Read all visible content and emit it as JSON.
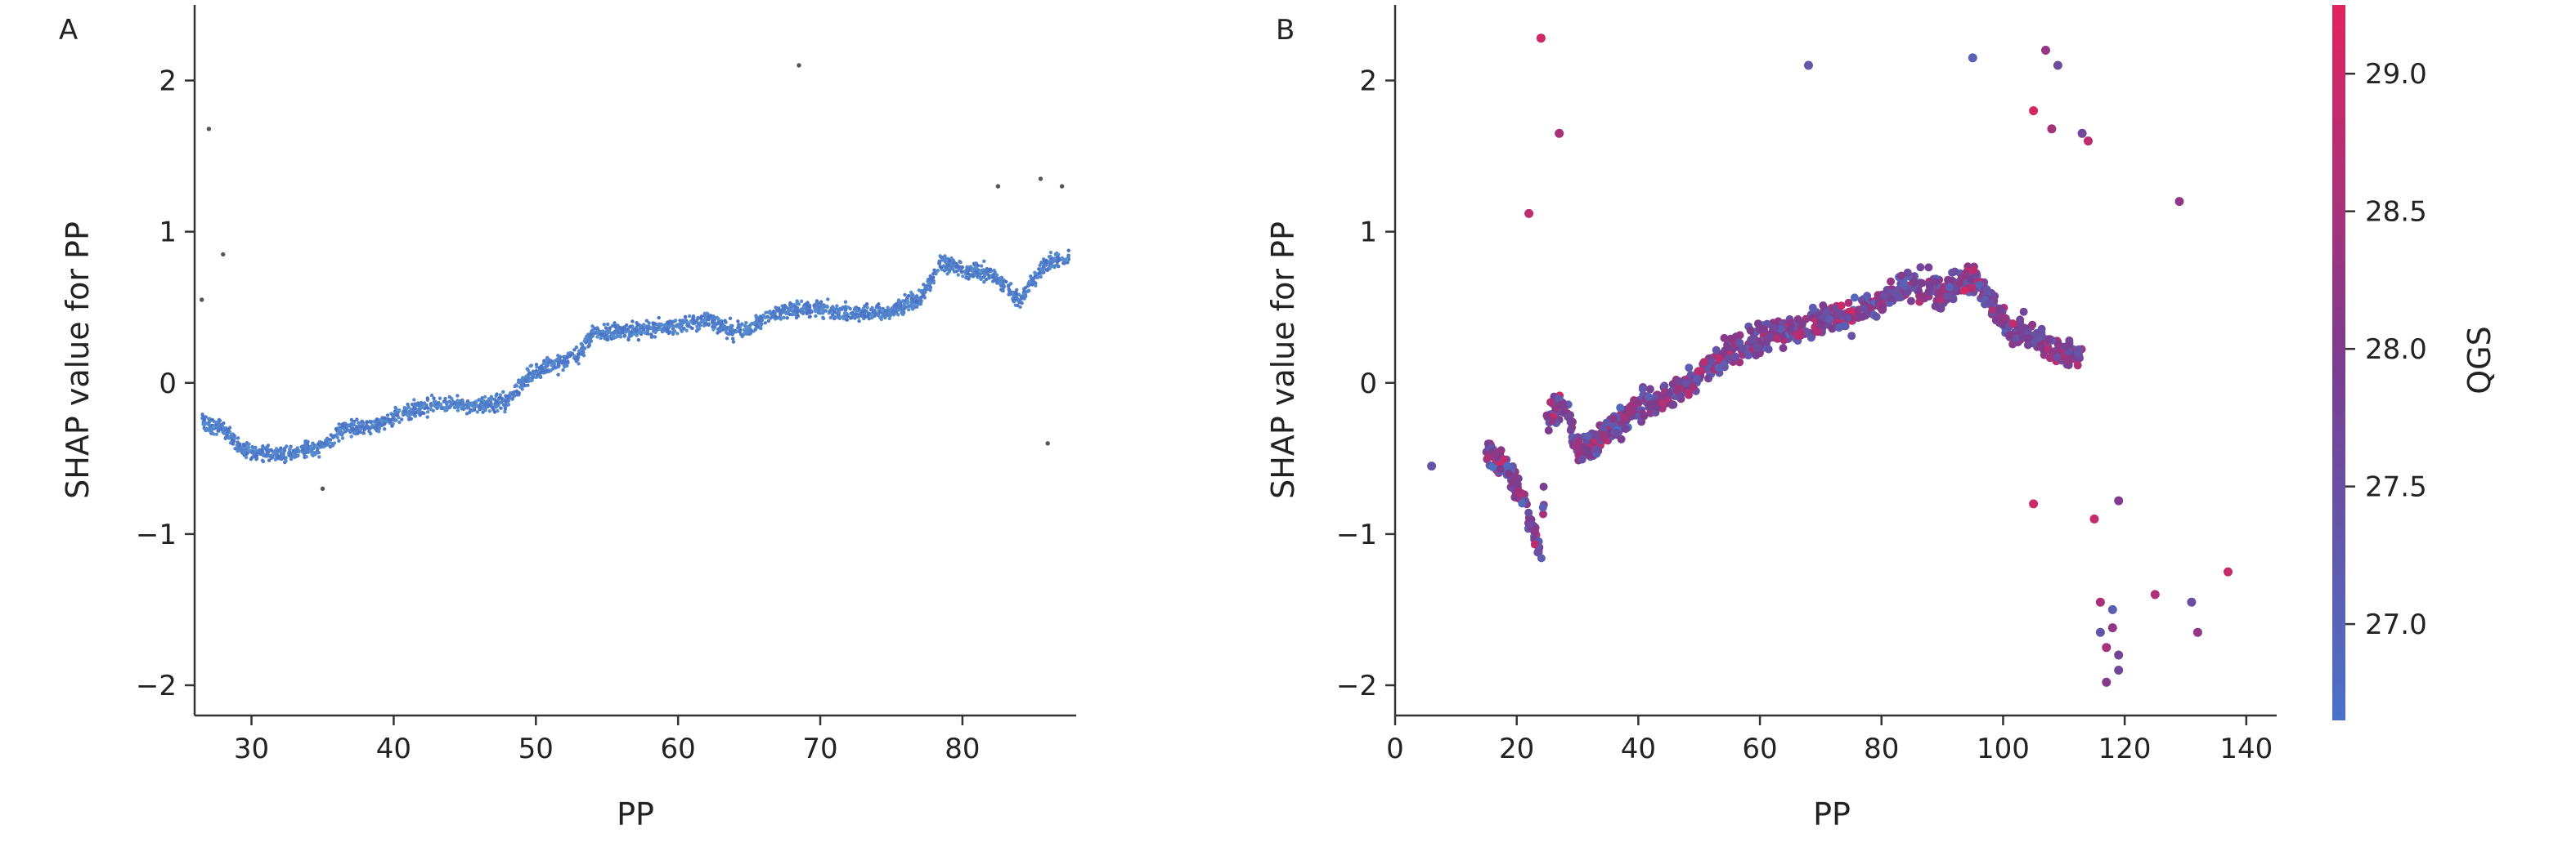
{
  "chart_data": [
    {
      "type": "scatter",
      "panel_label": "A",
      "xlabel": "PP",
      "ylabel": "SHAP value for PP",
      "xlim": [
        26,
        88
      ],
      "ylim": [
        -2.2,
        2.5
      ],
      "xticks": [
        30,
        40,
        50,
        60,
        70,
        80
      ],
      "yticks": [
        -2,
        -1,
        0,
        1,
        2
      ],
      "grid": false,
      "point_color": "#4a6fc4",
      "trend_points": [
        {
          "x": 26.5,
          "y": -0.25
        },
        {
          "x": 28.0,
          "y": -0.3
        },
        {
          "x": 29.5,
          "y": -0.45
        },
        {
          "x": 32.0,
          "y": -0.48
        },
        {
          "x": 35.0,
          "y": -0.42
        },
        {
          "x": 36.5,
          "y": -0.3
        },
        {
          "x": 39.0,
          "y": -0.28
        },
        {
          "x": 40.5,
          "y": -0.2
        },
        {
          "x": 43.0,
          "y": -0.15
        },
        {
          "x": 46.0,
          "y": -0.15
        },
        {
          "x": 48.0,
          "y": -0.12
        },
        {
          "x": 49.5,
          "y": 0.05
        },
        {
          "x": 51.0,
          "y": 0.12
        },
        {
          "x": 53.0,
          "y": 0.18
        },
        {
          "x": 54.0,
          "y": 0.33
        },
        {
          "x": 57.0,
          "y": 0.35
        },
        {
          "x": 60.0,
          "y": 0.38
        },
        {
          "x": 62.0,
          "y": 0.42
        },
        {
          "x": 63.5,
          "y": 0.35
        },
        {
          "x": 65.0,
          "y": 0.35
        },
        {
          "x": 67.0,
          "y": 0.48
        },
        {
          "x": 70.0,
          "y": 0.5
        },
        {
          "x": 72.0,
          "y": 0.45
        },
        {
          "x": 75.0,
          "y": 0.48
        },
        {
          "x": 77.0,
          "y": 0.55
        },
        {
          "x": 78.5,
          "y": 0.8
        },
        {
          "x": 80.0,
          "y": 0.75
        },
        {
          "x": 82.0,
          "y": 0.72
        },
        {
          "x": 84.0,
          "y": 0.55
        },
        {
          "x": 86.0,
          "y": 0.8
        },
        {
          "x": 87.5,
          "y": 0.82
        }
      ],
      "outliers": [
        {
          "x": 27.0,
          "y": 1.68
        },
        {
          "x": 68.5,
          "y": 2.1
        },
        {
          "x": 26.5,
          "y": 0.55
        },
        {
          "x": 28.0,
          "y": 0.85
        },
        {
          "x": 86.0,
          "y": -0.4
        },
        {
          "x": 35.0,
          "y": -0.7
        },
        {
          "x": 82.5,
          "y": 1.3
        },
        {
          "x": 85.5,
          "y": 1.35
        },
        {
          "x": 87.0,
          "y": 1.3
        }
      ]
    },
    {
      "type": "scatter",
      "panel_label": "B",
      "xlabel": "PP",
      "ylabel": "SHAP value for PP",
      "xlim": [
        0,
        145
      ],
      "ylim": [
        -2.2,
        2.5
      ],
      "xticks": [
        0,
        20,
        40,
        60,
        80,
        100,
        120,
        140
      ],
      "yticks": [
        -2,
        -1,
        0,
        1,
        2
      ],
      "grid": false,
      "colorbar": {
        "label": "QGS",
        "range": [
          26.65,
          29.25
        ],
        "ticks": [
          27.0,
          27.5,
          28.0,
          28.5,
          29.0
        ],
        "color_low": "#4a72c8",
        "color_mid": "#7b3d8f",
        "color_high": "#e0245e"
      },
      "trend_points": [
        {
          "x": 15,
          "y": -0.45
        },
        {
          "x": 18,
          "y": -0.55
        },
        {
          "x": 21,
          "y": -0.75
        },
        {
          "x": 23,
          "y": -1.0
        },
        {
          "x": 24,
          "y": -1.2
        },
        {
          "x": 25,
          "y": -0.2
        },
        {
          "x": 28,
          "y": -0.15
        },
        {
          "x": 30,
          "y": -0.45
        },
        {
          "x": 33,
          "y": -0.4
        },
        {
          "x": 36,
          "y": -0.3
        },
        {
          "x": 40,
          "y": -0.15
        },
        {
          "x": 45,
          "y": -0.1
        },
        {
          "x": 50,
          "y": 0.05
        },
        {
          "x": 55,
          "y": 0.2
        },
        {
          "x": 60,
          "y": 0.3
        },
        {
          "x": 65,
          "y": 0.35
        },
        {
          "x": 70,
          "y": 0.4
        },
        {
          "x": 75,
          "y": 0.45
        },
        {
          "x": 80,
          "y": 0.55
        },
        {
          "x": 85,
          "y": 0.65
        },
        {
          "x": 90,
          "y": 0.6
        },
        {
          "x": 95,
          "y": 0.7
        },
        {
          "x": 100,
          "y": 0.4
        },
        {
          "x": 105,
          "y": 0.3
        },
        {
          "x": 110,
          "y": 0.2
        },
        {
          "x": 113,
          "y": 0.2
        }
      ],
      "outliers": [
        {
          "x": 6,
          "y": -0.55,
          "q": 27.3
        },
        {
          "x": 24,
          "y": 2.28,
          "q": 29.0
        },
        {
          "x": 22,
          "y": 1.12,
          "q": 29.1
        },
        {
          "x": 27,
          "y": 1.65,
          "q": 29.0
        },
        {
          "x": 68,
          "y": 2.1,
          "q": 27.6
        },
        {
          "x": 95,
          "y": 2.15,
          "q": 27.0
        },
        {
          "x": 107,
          "y": 2.2,
          "q": 27.8
        },
        {
          "x": 109,
          "y": 2.1,
          "q": 27.2
        },
        {
          "x": 105,
          "y": 1.8,
          "q": 29.0
        },
        {
          "x": 108,
          "y": 1.68,
          "q": 29.1
        },
        {
          "x": 113,
          "y": 1.65,
          "q": 27.6
        },
        {
          "x": 114,
          "y": 1.6,
          "q": 29.1
        },
        {
          "x": 129,
          "y": 1.2,
          "q": 29.0
        },
        {
          "x": 105,
          "y": -0.8,
          "q": 29.1
        },
        {
          "x": 115,
          "y": -0.9,
          "q": 29.0
        },
        {
          "x": 119,
          "y": -0.78,
          "q": 27.5
        },
        {
          "x": 116,
          "y": -1.45,
          "q": 29.0
        },
        {
          "x": 118,
          "y": -1.5,
          "q": 27.3
        },
        {
          "x": 116,
          "y": -1.65,
          "q": 27.4
        },
        {
          "x": 117,
          "y": -1.75,
          "q": 29.1
        },
        {
          "x": 119,
          "y": -1.8,
          "q": 27.6
        },
        {
          "x": 117,
          "y": -1.98,
          "q": 29.0
        },
        {
          "x": 119,
          "y": -1.9,
          "q": 27.2
        },
        {
          "x": 118,
          "y": -1.62,
          "q": 28.9
        },
        {
          "x": 125,
          "y": -1.4,
          "q": 29.0
        },
        {
          "x": 131,
          "y": -1.45,
          "q": 27.5
        },
        {
          "x": 132,
          "y": -1.65,
          "q": 29.0
        },
        {
          "x": 137,
          "y": -1.25,
          "q": 29.1
        }
      ]
    }
  ]
}
